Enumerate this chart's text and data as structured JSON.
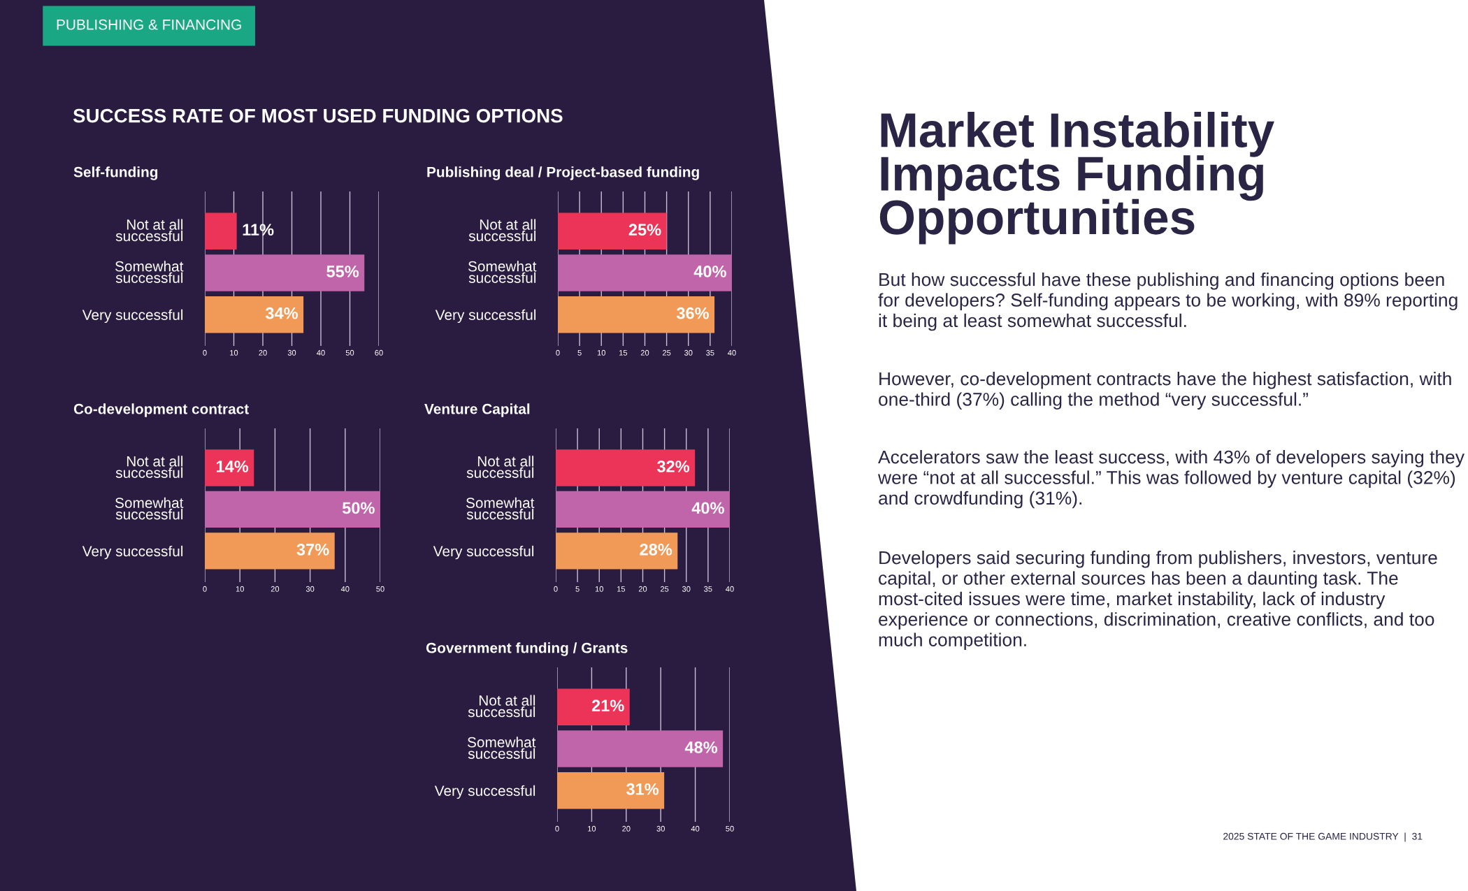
{
  "chart_data": [
    {
      "type": "bar",
      "orientation": "horizontal",
      "title": "Self-funding",
      "categories": [
        "Not at all\nsuccessful",
        "Somewhat\nsuccessful",
        "Very successful"
      ],
      "values": [
        11,
        55,
        34
      ],
      "colors": [
        "#ec3358",
        "#c065a9",
        "#f19a58"
      ],
      "value_labels": [
        "11%",
        "55%",
        "34%"
      ],
      "xlim": [
        0,
        60
      ],
      "xticks": [
        0,
        10,
        20,
        30,
        40,
        50,
        60
      ],
      "grid": "x"
    },
    {
      "type": "bar",
      "orientation": "horizontal",
      "title": "Publishing deal / Project-based funding",
      "categories": [
        "Not at all\nsuccessful",
        "Somewhat\nsuccessful",
        "Very successful"
      ],
      "values": [
        25,
        40,
        36
      ],
      "colors": [
        "#ec3358",
        "#c065a9",
        "#f19a58"
      ],
      "value_labels": [
        "25%",
        "40%",
        "36%"
      ],
      "xlim": [
        0,
        40
      ],
      "xticks": [
        0,
        5,
        10,
        15,
        20,
        25,
        30,
        35,
        40
      ],
      "grid": "x"
    },
    {
      "type": "bar",
      "orientation": "horizontal",
      "title": "Co-development contract",
      "categories": [
        "Not at all\nsuccessful",
        "Somewhat\nsuccessful",
        "Very successful"
      ],
      "values": [
        14,
        50,
        37
      ],
      "colors": [
        "#ec3358",
        "#c065a9",
        "#f19a58"
      ],
      "value_labels": [
        "14%",
        "50%",
        "37%"
      ],
      "xlim": [
        0,
        50
      ],
      "xticks": [
        0,
        10,
        20,
        30,
        40,
        50
      ],
      "grid": "x"
    },
    {
      "type": "bar",
      "orientation": "horizontal",
      "title": "Venture Capital",
      "categories": [
        "Not at all\nsuccessful",
        "Somewhat\nsuccessful",
        "Very successful"
      ],
      "values": [
        32,
        40,
        28
      ],
      "colors": [
        "#ec3358",
        "#c065a9",
        "#f19a58"
      ],
      "value_labels": [
        "32%",
        "40%",
        "28%"
      ],
      "xlim": [
        0,
        40
      ],
      "xticks": [
        0,
        5,
        10,
        15,
        20,
        25,
        30,
        35,
        40
      ],
      "grid": "x"
    },
    {
      "type": "bar",
      "orientation": "horizontal",
      "title": "Government funding / Grants",
      "categories": [
        "Not at all\nsuccessful",
        "Somewhat\nsuccessful",
        "Very successful"
      ],
      "values": [
        21,
        48,
        31
      ],
      "colors": [
        "#ec3358",
        "#c065a9",
        "#f19a58"
      ],
      "value_labels": [
        "21%",
        "48%",
        "31%"
      ],
      "xlim": [
        0,
        50
      ],
      "xticks": [
        0,
        10,
        20,
        30,
        40,
        50
      ],
      "grid": "x"
    },
    {
      "type": "other",
      "title": "Market Instability Impacts Funding Opportunities",
      "annotations": [
        "PUBLISHING & FINANCING",
        "SUCCESS RATE OF MOST USED FUNDING OPTIONS",
        "But how successful have these publishing and financing options been for developers? Self-funding appears to be working, with 89% reporting it being at least somewhat successful.",
        "However, co-development contracts have the highest satisfaction, with one-third (37%) calling the method “very successful.”",
        "Accelerators saw the least success, with 43% of developers saying they were “not at all successful.” This was followed by venture capital (32%) and crowdfunding (31%).",
        "Developers said securing funding from publishers, investors, venture capital, or other external sources has been a daunting task. The most-cited issues were time, market instability, lack of industry experience or connections, discrimination, creative conflicts, and too much competition.",
        "2025 STATE OF THE GAME INDUSTRY  |  31"
      ]
    }
  ]
}
